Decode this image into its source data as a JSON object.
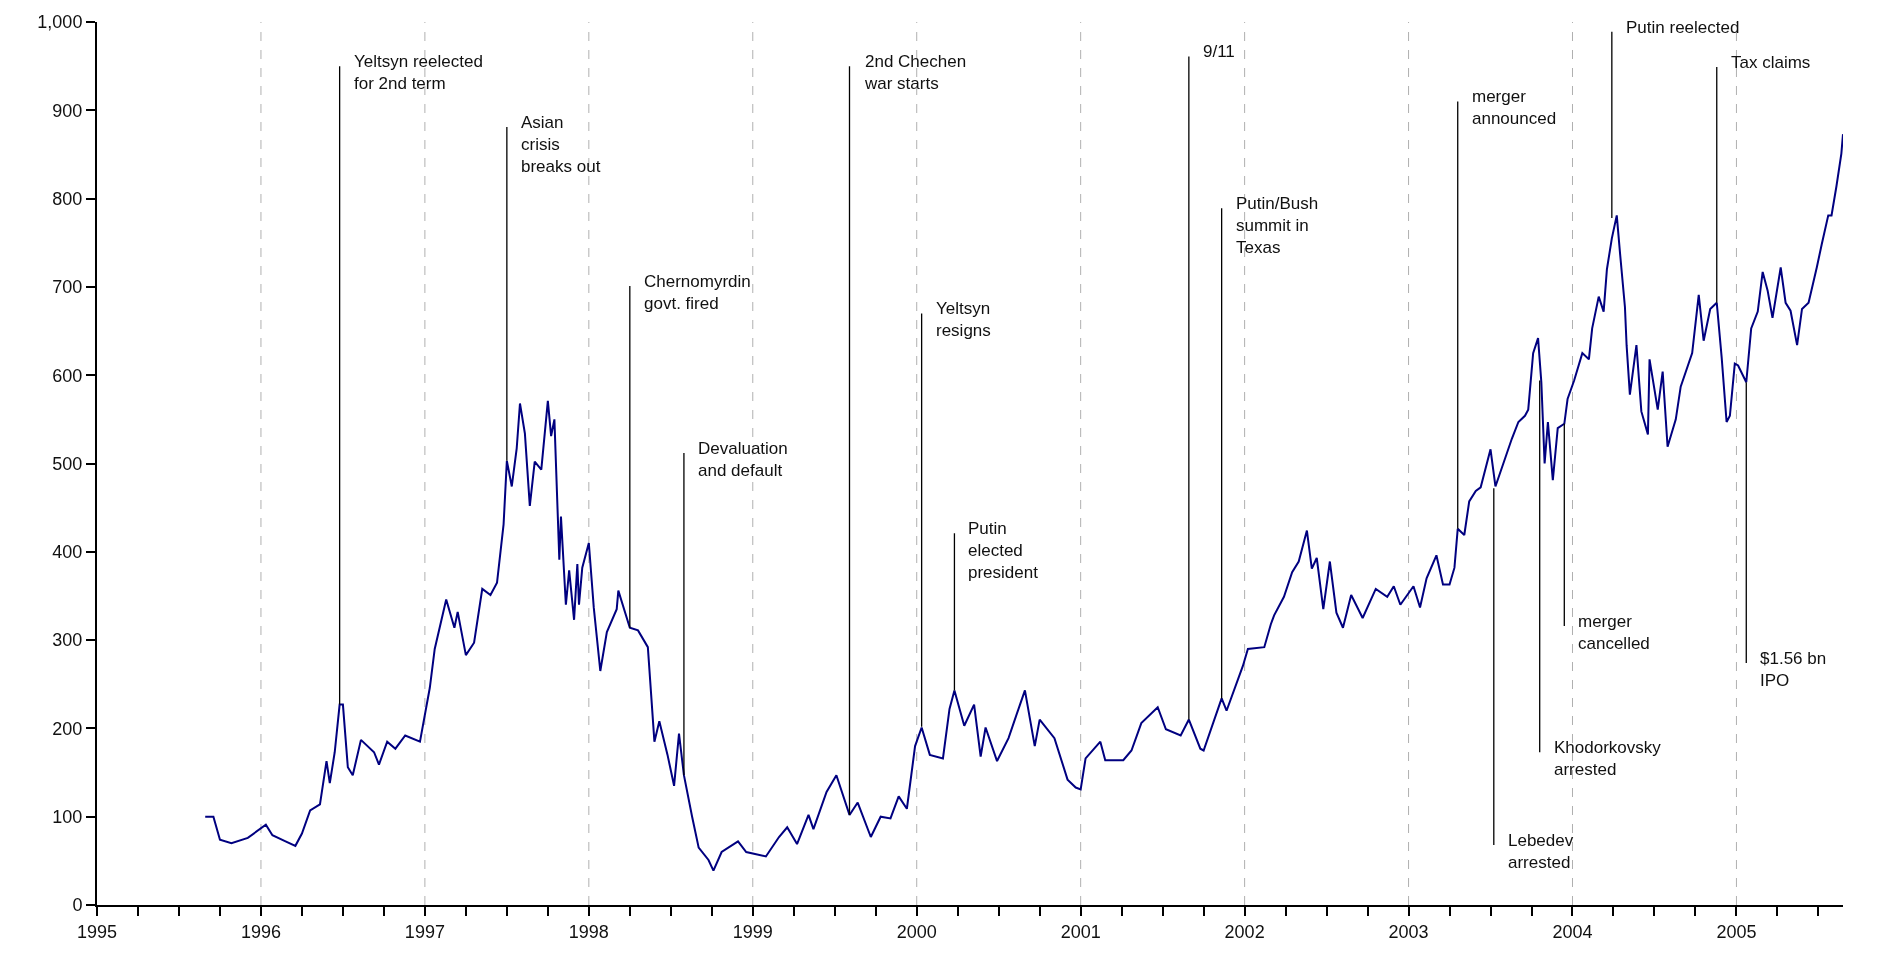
{
  "chart_data": {
    "type": "line",
    "x": [
      1995.66,
      1995.71,
      1995.75,
      1995.82,
      1995.92,
      1996.03,
      1996.07,
      1996.15,
      1996.21,
      1996.25,
      1996.3,
      1996.36,
      1996.4,
      1996.42,
      1996.45,
      1996.48,
      1996.5,
      1996.53,
      1996.56,
      1996.61,
      1996.69,
      1996.72,
      1996.77,
      1996.82,
      1996.88,
      1996.97,
      1997.03,
      1997.06,
      1997.13,
      1997.18,
      1997.2,
      1997.25,
      1997.3,
      1997.35,
      1997.4,
      1997.44,
      1997.48,
      1997.5,
      1997.53,
      1997.56,
      1997.58,
      1997.61,
      1997.64,
      1997.67,
      1997.71,
      1997.75,
      1997.77,
      1997.79,
      1997.82,
      1997.83,
      1997.86,
      1997.88,
      1997.91,
      1997.93,
      1997.94,
      1997.96,
      1998.0,
      1998.03,
      1998.07,
      1998.11,
      1998.17,
      1998.18,
      1998.25,
      1998.3,
      1998.36,
      1998.4,
      1998.43,
      1998.48,
      1998.52,
      1998.55,
      1998.58,
      1998.63,
      1998.67,
      1998.73,
      1998.76,
      1998.81,
      1998.91,
      1998.96,
      1999.08,
      1999.16,
      1999.21,
      1999.27,
      1999.34,
      1999.37,
      1999.45,
      1999.51,
      1999.59,
      1999.64,
      1999.72,
      1999.78,
      1999.84,
      1999.89,
      1999.94,
      1999.99,
      2000.03,
      2000.08,
      2000.16,
      2000.2,
      2000.23,
      2000.29,
      2000.35,
      2000.39,
      2000.42,
      2000.49,
      2000.56,
      2000.63,
      2000.66,
      2000.72,
      2000.75,
      2000.84,
      2000.92,
      2000.97,
      2001.0,
      2001.03,
      2001.12,
      2001.15,
      2001.26,
      2001.31,
      2001.37,
      2001.47,
      2001.52,
      2001.61,
      2001.66,
      2001.73,
      2001.75,
      2001.86,
      2001.89,
      2001.99,
      2002.02,
      2002.12,
      2002.16,
      2002.18,
      2002.24,
      2002.29,
      2002.33,
      2002.38,
      2002.41,
      2002.44,
      2002.48,
      2002.52,
      2002.56,
      2002.6,
      2002.65,
      2002.72,
      2002.8,
      2002.87,
      2002.91,
      2002.95,
      2003.03,
      2003.07,
      2003.11,
      2003.17,
      2003.21,
      2003.25,
      2003.28,
      2003.3,
      2003.34,
      2003.37,
      2003.41,
      2003.44,
      2003.5,
      2003.53,
      2003.63,
      2003.67,
      2003.71,
      2003.73,
      2003.76,
      2003.79,
      2003.81,
      2003.83,
      2003.85,
      2003.88,
      2003.91,
      2003.95,
      2003.97,
      2004.01,
      2004.06,
      2004.1,
      2004.12,
      2004.16,
      2004.19,
      2004.21,
      2004.24,
      2004.27,
      2004.29,
      2004.32,
      2004.33,
      2004.35,
      2004.39,
      2004.42,
      2004.46,
      2004.47,
      2004.52,
      2004.55,
      2004.58,
      2004.63,
      2004.66,
      2004.73,
      2004.77,
      2004.8,
      2004.84,
      2004.88,
      2004.91,
      2004.94,
      2004.96,
      2004.99,
      2005.01,
      2005.06,
      2005.09,
      2005.13,
      2005.16,
      2005.19,
      2005.22,
      2005.27,
      2005.3,
      2005.33,
      2005.37,
      2005.4,
      2005.44,
      2005.49,
      2005.52,
      2005.56,
      2005.58,
      2005.61,
      2005.64,
      2005.65
    ],
    "series": [
      {
        "color": "#000080",
        "values": [
          100,
          100,
          74,
          70,
          76,
          91,
          79,
          72,
          67,
          81,
          107,
          114,
          163,
          138,
          173,
          227,
          227,
          156,
          147,
          187,
          173,
          159,
          185,
          177,
          192,
          185,
          246,
          290,
          346,
          314,
          332,
          283,
          297,
          358,
          351,
          365,
          431,
          503,
          474,
          517,
          568,
          534,
          452,
          502,
          493,
          571,
          531,
          550,
          391,
          440,
          340,
          379,
          323,
          386,
          340,
          382,
          410,
          337,
          265,
          309,
          335,
          356,
          314,
          311,
          292,
          185,
          208,
          170,
          135,
          194,
          147,
          100,
          65,
          51,
          39,
          60,
          72,
          60,
          55,
          77,
          88,
          69,
          102,
          86,
          128,
          147,
          102,
          116,
          77,
          100,
          98,
          123,
          109,
          180,
          201,
          170,
          166,
          222,
          243,
          203,
          227,
          168,
          201,
          163,
          189,
          227,
          243,
          180,
          210,
          189,
          142,
          133,
          131,
          166,
          185,
          164,
          164,
          175,
          206,
          224,
          199,
          192,
          210,
          177,
          175,
          234,
          220,
          271,
          290,
          292,
          318,
          328,
          349,
          377,
          389,
          424,
          381,
          393,
          335,
          389,
          331,
          314,
          351,
          325,
          358,
          349,
          361,
          340,
          361,
          337,
          370,
          396,
          363,
          363,
          382,
          426,
          419,
          457,
          469,
          473,
          516,
          474,
          528,
          547,
          554,
          561,
          625,
          642,
          592,
          500,
          547,
          481,
          540,
          545,
          573,
          594,
          625,
          618,
          653,
          689,
          672,
          720,
          755,
          781,
          738,
          677,
          634,
          578,
          634,
          559,
          533,
          618,
          561,
          604,
          519,
          550,
          587,
          625,
          691,
          639,
          675,
          682,
          620,
          547,
          554,
          613,
          611,
          592,
          653,
          672,
          717,
          696,
          665,
          722,
          682,
          673,
          634,
          675,
          682,
          722,
          748,
          781,
          781,
          814,
          851,
          873
        ]
      }
    ],
    "xlim": [
      1995,
      2005.65
    ],
    "xticks": [
      1995,
      {
        "value": 1995.25,
        "label": null
      },
      {
        "value": 1995.5,
        "label": null
      },
      {
        "value": 1995.75,
        "label": null
      },
      1996,
      {
        "value": 1996.25,
        "label": null
      },
      {
        "value": 1996.5,
        "label": null
      },
      {
        "value": 1996.75,
        "label": null
      },
      1997,
      {
        "value": 1997.25,
        "label": null
      },
      {
        "value": 1997.5,
        "label": null
      },
      {
        "value": 1997.75,
        "label": null
      },
      1998,
      {
        "value": 1998.25,
        "label": null
      },
      {
        "value": 1998.5,
        "label": null
      },
      {
        "value": 1998.75,
        "label": null
      },
      1999,
      {
        "value": 1999.25,
        "label": null
      },
      {
        "value": 1999.5,
        "label": null
      },
      {
        "value": 1999.75,
        "label": null
      },
      2000,
      {
        "value": 2000.25,
        "label": null
      },
      {
        "value": 2000.5,
        "label": null
      },
      {
        "value": 2000.75,
        "label": null
      },
      2001,
      {
        "value": 2001.25,
        "label": null
      },
      {
        "value": 2001.5,
        "label": null
      },
      {
        "value": 2001.75,
        "label": null
      },
      2002,
      {
        "value": 2002.25,
        "label": null
      },
      {
        "value": 2002.5,
        "label": null
      },
      {
        "value": 2002.75,
        "label": null
      },
      2003,
      {
        "value": 2003.25,
        "label": null
      },
      {
        "value": 2003.5,
        "label": null
      },
      {
        "value": 2003.75,
        "label": null
      },
      2004,
      {
        "value": 2004.25,
        "label": null
      },
      {
        "value": 2004.5,
        "label": null
      },
      {
        "value": 2004.75,
        "label": null
      },
      2005,
      {
        "value": 2005.25,
        "label": null
      },
      {
        "value": 2005.5,
        "label": null
      }
    ],
    "ylim": [
      0,
      1000
    ],
    "yticks": [
      0,
      100,
      200,
      300,
      400,
      500,
      600,
      700,
      800,
      900,
      {
        "value": 1000,
        "label": "1,000"
      }
    ],
    "grid": "x",
    "annotations": [
      {
        "text": "Yeltsyn reelected\nfor 2nd term",
        "x": 1996.48,
        "y": 227
      },
      {
        "text": "Asian\ncrisis\nbreaks out",
        "x": 1997.5,
        "y": 503
      },
      {
        "text": "Chernomyrdin\ngovt. fired",
        "x": 1998.25,
        "y": 314
      },
      {
        "text": "Devaluation\nand default",
        "x": 1998.58,
        "y": 147
      },
      {
        "text": "2nd Chechen\nwar starts",
        "x": 1999.59,
        "y": 102
      },
      {
        "text": "Yeltsyn\nresigns",
        "x": 2000.03,
        "y": 202
      },
      {
        "text": "Putin\nelected\npresident",
        "x": 2000.23,
        "y": 243
      },
      {
        "text": "9/11",
        "x": 2001.66,
        "y": 210
      },
      {
        "text": "Putin/Bush\nsummit in\nTexas",
        "x": 2001.86,
        "y": 234
      },
      {
        "text": "merger\nannounced",
        "x": 2003.3,
        "y": 426
      },
      {
        "text": "Putin reelected",
        "x": 2004.24,
        "y": 778
      },
      {
        "text": "Tax claims",
        "x": 2004.88,
        "y": 682
      },
      {
        "text": "Lebedev\narrested",
        "x": 2003.52,
        "y": 472
      },
      {
        "text": "Khodorkovsky\narrested",
        "x": 2003.8,
        "y": 594
      },
      {
        "text": "merger\ncancelled",
        "x": 2003.95,
        "y": 545
      },
      {
        "text": "$1.56 bn\nIPO",
        "x": 2005.06,
        "y": 592
      }
    ]
  }
}
